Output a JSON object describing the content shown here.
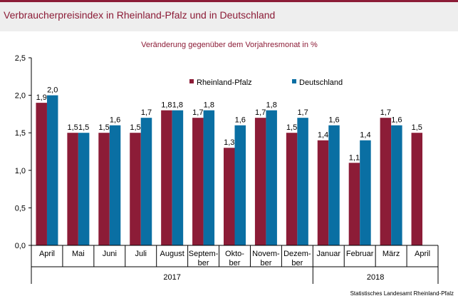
{
  "title": "Verbraucherpreisindex in Rheinland-Pfalz und in Deutschland",
  "colors": {
    "brand": "#8c1c37",
    "rp": "#8c1c37",
    "de": "#0a6fa3",
    "header_bg": "#eeeeee"
  },
  "chart_data": {
    "type": "bar",
    "subtitle": "Veränderung gegenüber dem Vorjahresmonat in %",
    "categories": [
      "April",
      "Mai",
      "Juni",
      "Juli",
      "August",
      "Septem-|ber",
      "Okto-|ber",
      "Novem-|ber",
      "Dezem-|ber",
      "Januar",
      "Februar",
      "März",
      "April"
    ],
    "years": [
      {
        "label": "2017",
        "from": 0,
        "to": 8
      },
      {
        "label": "2018",
        "from": 9,
        "to": 12
      }
    ],
    "series": [
      {
        "name": "Rheinland-Pfalz",
        "color": "#8c1c37",
        "values": [
          1.9,
          1.5,
          1.5,
          1.5,
          1.8,
          1.7,
          1.3,
          1.7,
          1.5,
          1.4,
          1.1,
          1.7,
          1.5
        ],
        "labels": [
          "1,9",
          "1,5",
          "1,5",
          "1,5",
          "1,8",
          "1,7",
          "1,3",
          "1,7",
          "1,5",
          "1,4",
          "1,1",
          "1,7",
          "1,5"
        ]
      },
      {
        "name": "Deutschland",
        "color": "#0a6fa3",
        "values": [
          2.0,
          1.5,
          1.6,
          1.7,
          1.8,
          1.8,
          1.6,
          1.8,
          1.7,
          1.6,
          1.4,
          1.6,
          null
        ],
        "labels": [
          "2,0",
          "1,5",
          "1,6",
          "1,7",
          "1,8",
          "1,8",
          "1,6",
          "1,8",
          "1,7",
          "1,6",
          "1,4",
          "1,6",
          ""
        ]
      }
    ],
    "yticks": [
      0,
      0.5,
      1.0,
      1.5,
      2.0,
      2.5
    ],
    "ytick_labels": [
      "0,0",
      "0,5",
      "1,0",
      "1,5",
      "2,0",
      "2,5"
    ],
    "ylim": [
      0,
      2.5
    ],
    "xlabel": "",
    "ylabel": "",
    "legend_position": "top-right",
    "grid": false
  },
  "source": "Statistisches Landesamt Rheinland-Pfalz"
}
